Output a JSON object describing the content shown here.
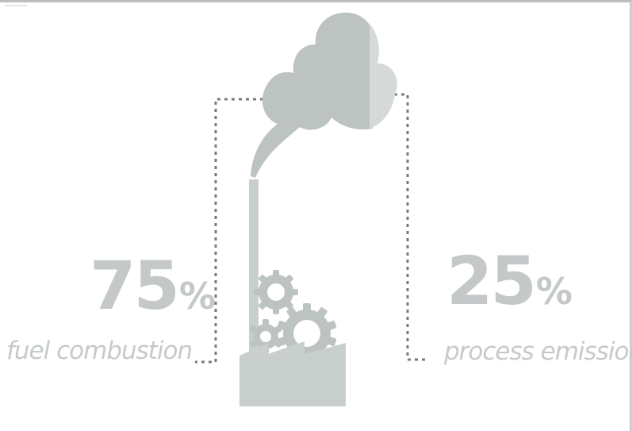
{
  "breakdown": [
    {
      "value": "75",
      "unit": "%",
      "label": "fuel combustion"
    },
    {
      "value": "25",
      "unit": "%",
      "label": "process emissions"
    }
  ],
  "colors": {
    "smoke_dark": "#bcc3c1",
    "smoke_light": "#d6d9d9",
    "factory": "#c9cfcd",
    "gear": "#bcc3c1",
    "dots": "#7a7a7a",
    "text": "#c4c8c8"
  },
  "icons": {
    "factory": "factory-icon",
    "gears": "gear-icon",
    "smoke": "smoke-cloud-icon"
  }
}
